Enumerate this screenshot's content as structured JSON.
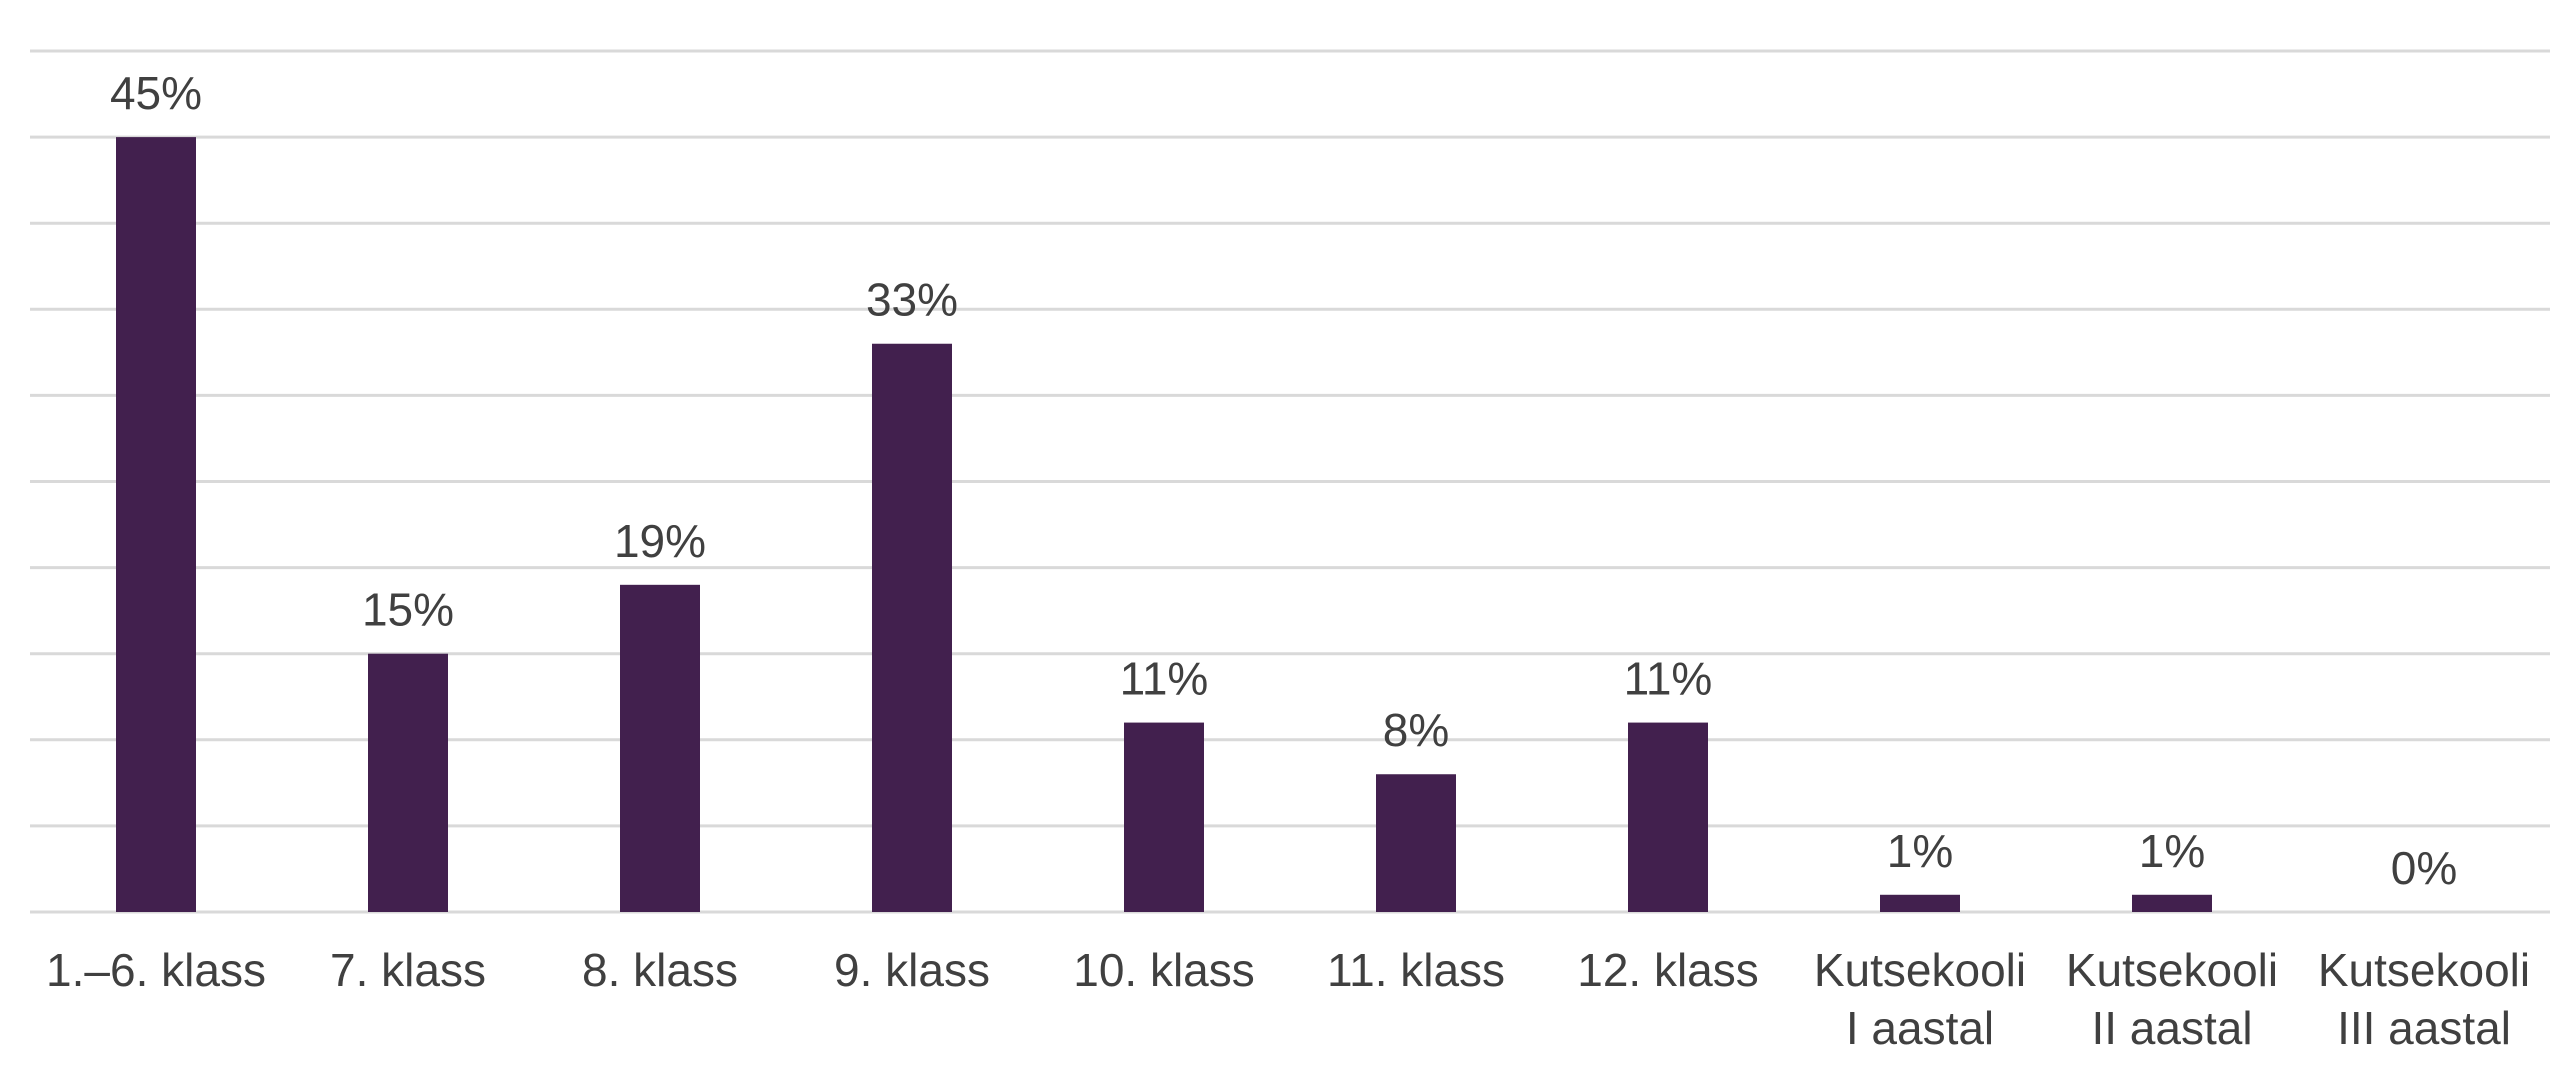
{
  "chart_data": {
    "type": "bar",
    "categories": [
      [
        "1.–6. klass"
      ],
      [
        "7. klass"
      ],
      [
        "8. klass"
      ],
      [
        "9. klass"
      ],
      [
        "10. klass"
      ],
      [
        "11. klass"
      ],
      [
        "12. klass"
      ],
      [
        "Kutsekooli",
        "I aastal"
      ],
      [
        "Kutsekooli",
        "II aastal"
      ],
      [
        "Kutsekooli",
        "III aastal"
      ]
    ],
    "values": [
      45,
      15,
      19,
      33,
      11,
      8,
      11,
      1,
      1,
      0
    ],
    "data_labels": [
      "45%",
      "15%",
      "19%",
      "33%",
      "11%",
      "8%",
      "11%",
      "1%",
      "1%",
      "0%"
    ],
    "unit": "%",
    "ylim": [
      0,
      50
    ],
    "grid": true,
    "legend": "none",
    "colors": {
      "bar": "#42204e",
      "grid": "#d9d9d9",
      "text": "#404040"
    }
  }
}
